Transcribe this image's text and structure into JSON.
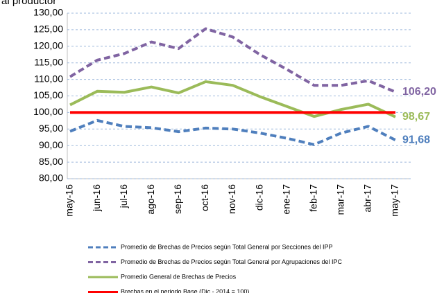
{
  "chart_data": {
    "type": "line",
    "title": "al productor",
    "categories": [
      "may-16",
      "jun-16",
      "jul-16",
      "ago-16",
      "sep-16",
      "oct-16",
      "nov-16",
      "dic-16",
      "ene-17",
      "feb-17",
      "mar-17",
      "abr-17",
      "may-17"
    ],
    "series": [
      {
        "name": "Promedio de Brechas de Precios según Total General por Secciones del IPP",
        "color": "#4f7fbd",
        "dash": true,
        "values": [
          94.3,
          97.6,
          95.8,
          95.4,
          94.2,
          95.3,
          95.0,
          93.8,
          92.2,
          90.3,
          93.8,
          95.8,
          91.68
        ],
        "value_labels": [
          null,
          null,
          null,
          null,
          null,
          null,
          null,
          null,
          null,
          null,
          null,
          null,
          "91,68"
        ]
      },
      {
        "name": "Promedio de Brechas de Precios según Total General por Agrupaciones del IPC",
        "color": "#8064a2",
        "dash": true,
        "values": [
          110.8,
          115.8,
          117.8,
          121.3,
          119.3,
          125.3,
          122.8,
          117.5,
          113.0,
          108.2,
          108.2,
          109.6,
          106.2
        ],
        "value_labels": [
          null,
          null,
          null,
          null,
          null,
          null,
          null,
          null,
          null,
          null,
          null,
          null,
          "106,20"
        ]
      },
      {
        "name": "Promedio General de Brechas de Precios",
        "color": "#9bbb59",
        "dash": false,
        "values": [
          102.3,
          106.4,
          106.1,
          107.7,
          105.9,
          109.3,
          108.2,
          104.8,
          101.8,
          98.8,
          100.9,
          102.5,
          98.67
        ],
        "value_labels": [
          null,
          null,
          null,
          null,
          null,
          null,
          null,
          null,
          null,
          null,
          null,
          null,
          "98,67"
        ]
      },
      {
        "name": "Brechas en el periodo Base (Dic - 2014 = 100)",
        "color": "#ff0000",
        "dash": false,
        "values": [
          100,
          100,
          100,
          100,
          100,
          100,
          100,
          100,
          100,
          100,
          100,
          100,
          100
        ]
      }
    ],
    "ylim": [
      80,
      130
    ],
    "yticks": [
      {
        "value": 80,
        "label": "80,00"
      },
      {
        "value": 85,
        "label": "85,00"
      },
      {
        "value": 90,
        "label": "90,00"
      },
      {
        "value": 95,
        "label": "95,00"
      },
      {
        "value": 100,
        "label": "100,00"
      },
      {
        "value": 105,
        "label": "105,00"
      },
      {
        "value": 110,
        "label": "110,00"
      },
      {
        "value": 115,
        "label": "115,00"
      },
      {
        "value": 120,
        "label": "120,00"
      },
      {
        "value": 125,
        "label": "125,00"
      },
      {
        "value": 130,
        "label": "130,00"
      }
    ],
    "grid": true
  }
}
